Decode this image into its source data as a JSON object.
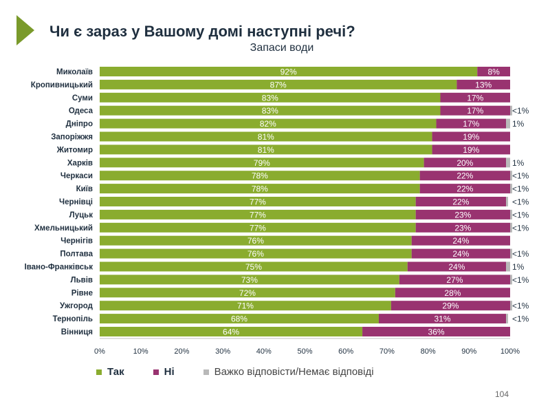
{
  "title": "Чи є зараз у Вашому домі наступні речі?",
  "subtitle": "Запаси води",
  "page_number": "104",
  "colors": {
    "yes": "#8aac2f",
    "no": "#993370",
    "hard": "#b9b9b9",
    "arrow": "#7a9a2b"
  },
  "chart_data": {
    "type": "bar",
    "orientation": "horizontal",
    "stacked": true,
    "xlim": [
      0,
      100
    ],
    "x_ticks": [
      "0%",
      "10%",
      "20%",
      "30%",
      "40%",
      "50%",
      "60%",
      "70%",
      "80%",
      "90%",
      "100%"
    ],
    "categories": [
      "Миколаїв",
      "Кропивницький",
      "Суми",
      "Одеса",
      "Дніпро",
      "Запоріжжя",
      "Житомир",
      "Харків",
      "Черкаси",
      "Київ",
      "Чернівці",
      "Луцьк",
      "Хмельницький",
      "Чернігів",
      "Полтава",
      "Івано-Франківськ",
      "Львів",
      "Рівне",
      "Ужгород",
      "Тернопіль",
      "Вінниця"
    ],
    "series": [
      {
        "name": "Так",
        "values": [
          92,
          87,
          83,
          83,
          82,
          81,
          81,
          79,
          78,
          78,
          77,
          77,
          77,
          76,
          76,
          75,
          73,
          72,
          71,
          68,
          64
        ],
        "labels": [
          "92%",
          "87%",
          "83%",
          "83%",
          "82%",
          "81%",
          "81%",
          "79%",
          "78%",
          "78%",
          "77%",
          "77%",
          "77%",
          "76%",
          "76%",
          "75%",
          "73%",
          "72%",
          "71%",
          "68%",
          "64%"
        ]
      },
      {
        "name": "Ні",
        "values": [
          8,
          13,
          17,
          17,
          17,
          19,
          19,
          20,
          22,
          22,
          22,
          23,
          23,
          24,
          24,
          24,
          27,
          28,
          29,
          31,
          36
        ],
        "labels": [
          "8%",
          "13%",
          "17%",
          "17%",
          "17%",
          "19%",
          "19%",
          "20%",
          "22%",
          "22%",
          "22%",
          "23%",
          "23%",
          "24%",
          "24%",
          "24%",
          "27%",
          "28%",
          "29%",
          "31%",
          "36%"
        ]
      },
      {
        "name": "Важко відповісти/Немає відповіді",
        "values": [
          0,
          0,
          0,
          0.5,
          1,
          0,
          0,
          1,
          0.5,
          0.5,
          0.5,
          0.5,
          0.5,
          0,
          0.5,
          1,
          0.5,
          0,
          0.5,
          0.5,
          0
        ],
        "labels": [
          "",
          "",
          "",
          "<1%",
          "1%",
          "",
          "",
          "1%",
          "<1%",
          "<1%",
          "<1%",
          "<1%",
          "<1%",
          "",
          "<1%",
          "1%",
          "<1%",
          "",
          "<1%",
          "<1%",
          ""
        ]
      }
    ],
    "legend": {
      "placement": "bottom"
    },
    "grid": false
  }
}
